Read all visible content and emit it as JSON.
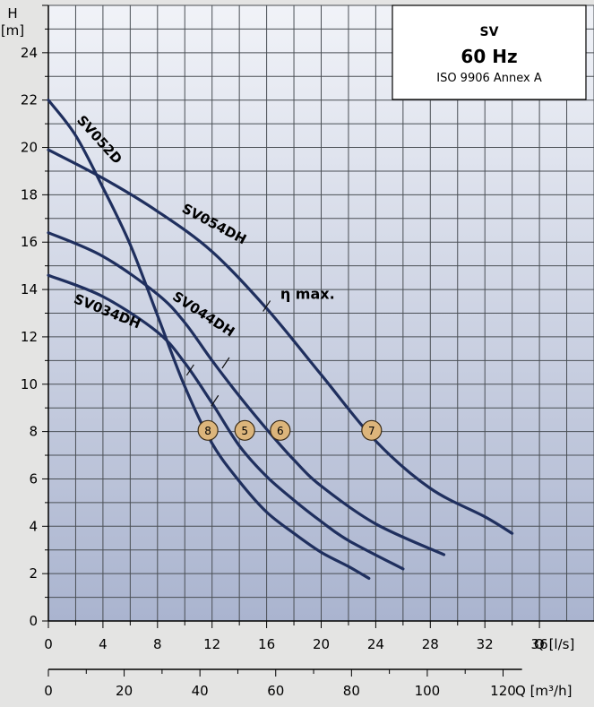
{
  "chart_data": {
    "type": "line",
    "info_box": {
      "title": "SV",
      "frequency": "60 Hz",
      "standard": "ISO 9906 Annex A"
    },
    "y_axis": {
      "label_top": "H",
      "label_unit": "[m]",
      "ylim": [
        0,
        26
      ],
      "ticks": [
        0,
        2,
        4,
        6,
        8,
        10,
        12,
        14,
        16,
        18,
        20,
        22,
        24
      ]
    },
    "x_axis": {
      "label": "Q [l/s]",
      "xlim": [
        0,
        40
      ],
      "ticks": [
        0,
        4,
        8,
        12,
        16,
        20,
        24,
        28,
        32,
        36
      ]
    },
    "x_axis_secondary": {
      "label": "Q [m³/h]",
      "ticks": [
        0,
        20,
        40,
        60,
        80,
        100,
        120
      ]
    },
    "grid": true,
    "series": [
      {
        "name": "SV052D",
        "color": "#1f2f5e",
        "x": [
          0,
          2,
          4,
          6,
          8,
          10,
          12,
          14,
          16,
          18,
          20,
          22,
          23.5
        ],
        "y": [
          22.0,
          20.5,
          18.3,
          15.9,
          12.9,
          9.9,
          7.5,
          5.9,
          4.6,
          3.7,
          2.9,
          2.3,
          1.8
        ]
      },
      {
        "name": "SV054DH",
        "color": "#1f2f5e",
        "x": [
          0,
          4,
          8,
          12,
          16,
          20,
          24,
          28,
          32,
          34
        ],
        "y": [
          19.9,
          18.7,
          17.3,
          15.6,
          13.2,
          10.4,
          7.6,
          5.6,
          4.4,
          3.7
        ]
      },
      {
        "name": "SV044DH",
        "color": "#1f2f5e",
        "x": [
          0,
          4,
          8,
          10,
          12,
          14,
          16,
          18,
          20,
          24,
          29
        ],
        "y": [
          16.4,
          15.4,
          13.8,
          12.6,
          11.0,
          9.5,
          8.1,
          6.8,
          5.7,
          4.1,
          2.8
        ]
      },
      {
        "name": "SV034DH",
        "color": "#1f2f5e",
        "x": [
          0,
          4,
          8,
          10,
          12,
          14,
          16,
          18,
          20,
          22,
          26
        ],
        "y": [
          14.6,
          13.7,
          12.2,
          10.9,
          9.2,
          7.4,
          6.1,
          5.1,
          4.2,
          3.4,
          2.2
        ]
      }
    ],
    "curve_labels": [
      {
        "text": "SV052D",
        "x": 3.5,
        "y": 20.2,
        "angle": 48
      },
      {
        "text": "SV054DH",
        "x": 12.0,
        "y": 16.6,
        "angle": 28
      },
      {
        "text": "SV044DH",
        "x": 11.2,
        "y": 12.8,
        "angle": 33
      },
      {
        "text": "SV034DH",
        "x": 4.2,
        "y": 12.9,
        "angle": 22
      }
    ],
    "eta_max_marks": [
      {
        "x": 16.0,
        "y": 13.3
      },
      {
        "x": 13.0,
        "y": 10.9
      },
      {
        "x": 10.4,
        "y": 10.6
      },
      {
        "x": 12.2,
        "y": 9.3
      }
    ],
    "eta_max_label": {
      "text": "η max.",
      "x": 17.0,
      "y": 13.6
    },
    "badges": [
      {
        "text": "8",
        "x": 11.7,
        "y": 8.05,
        "color": "#dcb57b"
      },
      {
        "text": "5",
        "x": 14.4,
        "y": 8.05,
        "color": "#dcb57b"
      },
      {
        "text": "6",
        "x": 17.0,
        "y": 8.05,
        "color": "#dcb57b"
      },
      {
        "text": "7",
        "x": 23.7,
        "y": 8.05,
        "color": "#dcb57b"
      }
    ],
    "colors": {
      "plot_top": "#f1f3f8",
      "plot_bottom": "#aab4cf",
      "grid": "#4a4f55",
      "curve": "#1f2f5e"
    }
  }
}
